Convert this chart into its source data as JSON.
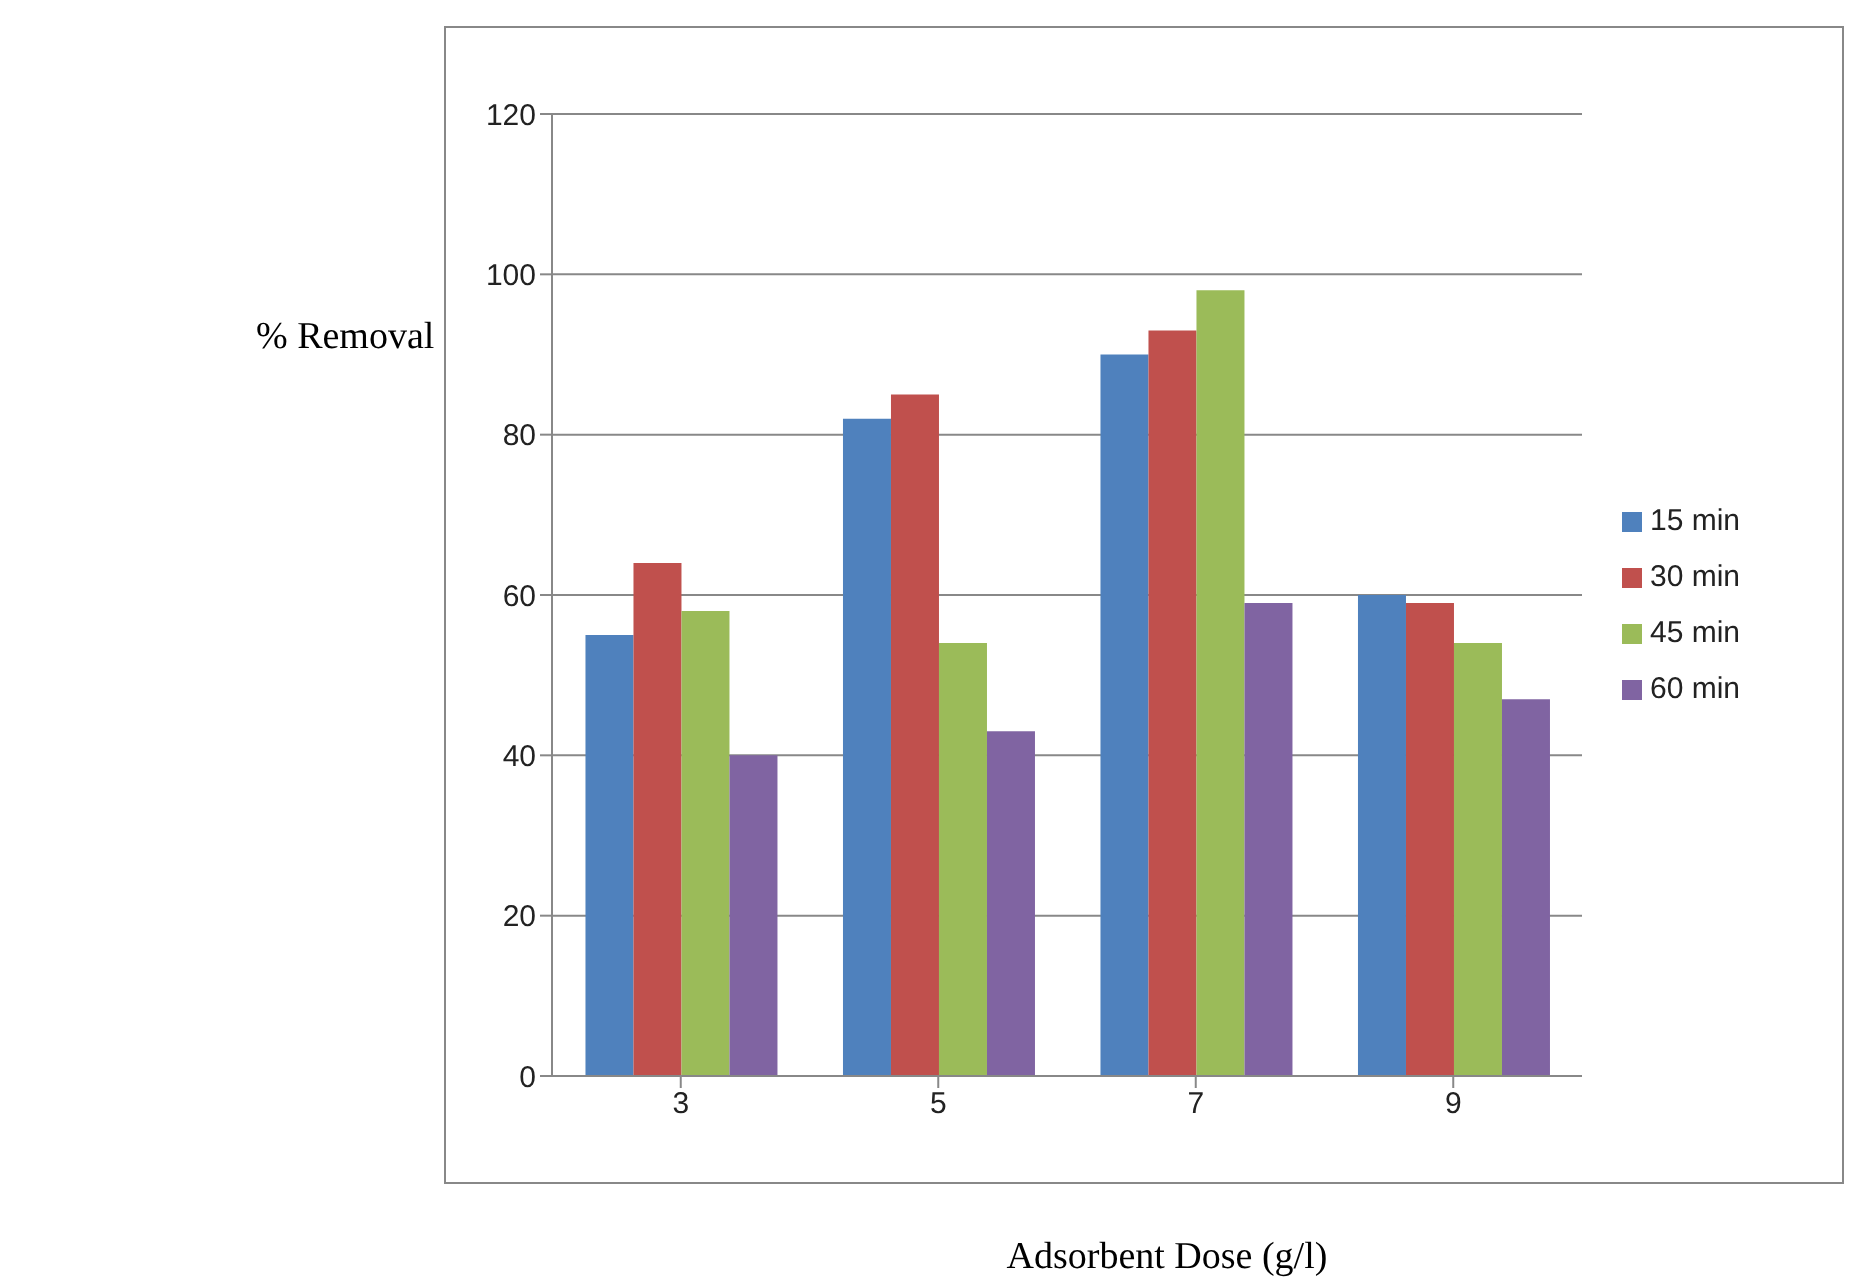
{
  "chart_data": {
    "type": "bar",
    "xlabel": "Adsorbent Dose (g/l)",
    "ylabel": "% Removal",
    "categories": [
      "3",
      "5",
      "7",
      "9"
    ],
    "series": [
      {
        "name": "15 min",
        "color": "#4f81bd",
        "values": [
          55,
          82,
          90,
          60
        ]
      },
      {
        "name": "30 min",
        "color": "#c0504d",
        "values": [
          64,
          85,
          93,
          59
        ]
      },
      {
        "name": "45 min",
        "color": "#9bbb59",
        "values": [
          58,
          54,
          98,
          54
        ]
      },
      {
        "name": "60 min",
        "color": "#8064a2",
        "values": [
          40,
          43,
          59,
          47
        ]
      }
    ],
    "ylim": [
      0,
      120
    ],
    "yticks": [
      0,
      20,
      40,
      60,
      80,
      100,
      120
    ],
    "grid": "y",
    "legend": "right"
  }
}
